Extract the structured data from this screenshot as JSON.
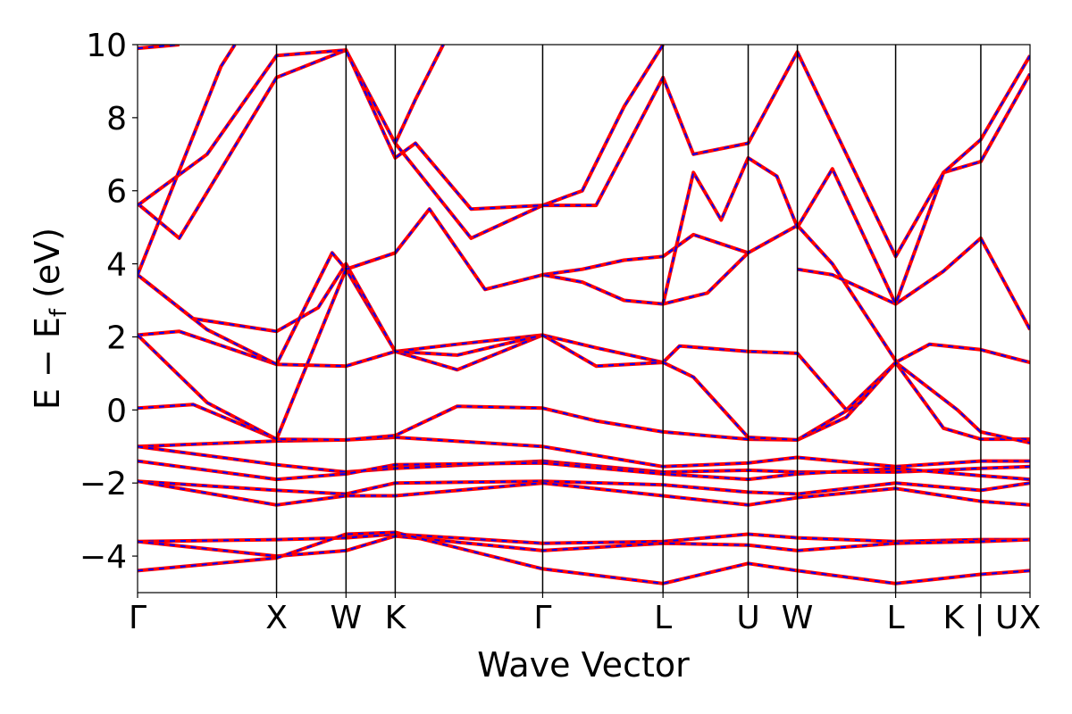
{
  "chart_data": {
    "type": "line",
    "title": "",
    "xlabel": "Wave Vector",
    "ylabel_main": "E − E",
    "ylabel_sub": "f",
    "ylabel_unit": " (eV)",
    "ylim": [
      -5,
      10
    ],
    "yticks": [
      {
        "value": 10,
        "label": "10"
      },
      {
        "value": 8,
        "label": "8"
      },
      {
        "value": 6,
        "label": "6"
      },
      {
        "value": 4,
        "label": "4"
      },
      {
        "value": 2,
        "label": "2"
      },
      {
        "value": 0,
        "label": "0"
      },
      {
        "value": -2,
        "label": "−2"
      },
      {
        "value": -4,
        "label": "−4"
      }
    ],
    "kpath": [
      {
        "label": "Γ",
        "x": 0.0
      },
      {
        "label": "X",
        "x": 1.0
      },
      {
        "label": "W",
        "x": 1.5
      },
      {
        "label": "K",
        "x": 1.854
      },
      {
        "label": "Γ",
        "x": 2.915
      },
      {
        "label": "L",
        "x": 3.781
      },
      {
        "label": "U",
        "x": 4.394
      },
      {
        "label": "W",
        "x": 4.748
      },
      {
        "label": "L",
        "x": 5.455
      },
      {
        "label": "K | U",
        "x": 6.068
      },
      {
        "label": "X",
        "x": 6.422
      }
    ],
    "xlim": [
      0,
      6.422
    ],
    "series_colors": {
      "dft": "#ff0000",
      "model": "#0000ff"
    },
    "series": [
      {
        "points": [
          [
            0,
            -1.0
          ],
          [
            1.0,
            -0.85
          ],
          [
            1.5,
            -0.82
          ],
          [
            1.854,
            -0.75
          ],
          [
            2.915,
            -1.0
          ],
          [
            3.781,
            -1.55
          ],
          [
            4.394,
            -1.45
          ],
          [
            4.748,
            -1.3
          ],
          [
            5.455,
            -1.55
          ],
          [
            6.068,
            -1.4
          ],
          [
            6.422,
            -1.4
          ]
        ]
      },
      {
        "points": [
          [
            0,
            -1.0
          ],
          [
            1.0,
            -1.5
          ],
          [
            1.5,
            -1.7
          ],
          [
            1.854,
            -1.6
          ],
          [
            2.915,
            -1.4
          ],
          [
            3.781,
            -1.7
          ],
          [
            4.394,
            -1.65
          ],
          [
            4.748,
            -1.7
          ],
          [
            5.455,
            -1.7
          ],
          [
            6.068,
            -1.6
          ],
          [
            6.422,
            -1.55
          ]
        ]
      },
      {
        "points": [
          [
            0,
            -1.4
          ],
          [
            1.0,
            -1.9
          ],
          [
            1.5,
            -1.75
          ],
          [
            1.854,
            -1.5
          ],
          [
            2.915,
            -1.45
          ],
          [
            3.781,
            -1.75
          ],
          [
            4.394,
            -1.9
          ],
          [
            4.748,
            -1.75
          ],
          [
            5.455,
            -1.6
          ],
          [
            6.068,
            -1.8
          ],
          [
            6.422,
            -1.9
          ]
        ]
      },
      {
        "points": [
          [
            0,
            -1.95
          ],
          [
            1.0,
            -2.2
          ],
          [
            1.5,
            -2.3
          ],
          [
            1.854,
            -2.0
          ],
          [
            2.915,
            -1.95
          ],
          [
            3.781,
            -2.05
          ],
          [
            4.394,
            -2.25
          ],
          [
            4.748,
            -2.3
          ],
          [
            5.455,
            -2.0
          ],
          [
            6.068,
            -2.2
          ],
          [
            6.422,
            -2.0
          ]
        ]
      },
      {
        "points": [
          [
            0,
            -1.95
          ],
          [
            1.0,
            -2.6
          ],
          [
            1.5,
            -2.35
          ],
          [
            1.854,
            -2.35
          ],
          [
            2.915,
            -2.0
          ],
          [
            3.781,
            -2.35
          ],
          [
            4.394,
            -2.6
          ],
          [
            4.748,
            -2.4
          ],
          [
            5.455,
            -2.15
          ],
          [
            6.068,
            -2.5
          ],
          [
            6.422,
            -2.6
          ]
        ]
      },
      {
        "points": [
          [
            0,
            -3.6
          ],
          [
            1.0,
            -3.55
          ],
          [
            1.5,
            -3.5
          ],
          [
            1.854,
            -3.4
          ],
          [
            2.915,
            -3.65
          ],
          [
            3.781,
            -3.6
          ],
          [
            4.394,
            -3.4
          ],
          [
            4.748,
            -3.5
          ],
          [
            5.455,
            -3.6
          ],
          [
            6.068,
            -3.55
          ],
          [
            6.422,
            -3.55
          ]
        ]
      },
      {
        "points": [
          [
            0,
            -3.6
          ],
          [
            1.0,
            -4.0
          ],
          [
            1.5,
            -3.85
          ],
          [
            1.854,
            -3.45
          ],
          [
            2.915,
            -3.85
          ],
          [
            3.781,
            -3.65
          ],
          [
            4.394,
            -3.7
          ],
          [
            4.748,
            -3.85
          ],
          [
            5.455,
            -3.65
          ],
          [
            6.068,
            -3.6
          ],
          [
            6.422,
            -3.55
          ]
        ]
      },
      {
        "points": [
          [
            0,
            -4.4
          ],
          [
            1.0,
            -4.05
          ],
          [
            1.5,
            -3.4
          ],
          [
            1.854,
            -3.35
          ],
          [
            2.915,
            -4.35
          ],
          [
            3.781,
            -4.75
          ],
          [
            4.394,
            -4.2
          ],
          [
            4.748,
            -4.4
          ],
          [
            5.455,
            -4.75
          ],
          [
            6.068,
            -4.5
          ],
          [
            6.422,
            -4.4
          ]
        ]
      },
      {
        "points": [
          [
            0,
            0.05
          ],
          [
            0.4,
            0.15
          ],
          [
            1.0,
            -0.8
          ],
          [
            1.5,
            -0.82
          ],
          [
            1.854,
            -0.7
          ],
          [
            2.3,
            0.1
          ],
          [
            2.915,
            0.05
          ],
          [
            3.3,
            -0.3
          ],
          [
            3.781,
            -0.6
          ],
          [
            4.394,
            -0.8
          ],
          [
            4.748,
            -0.82
          ],
          [
            5.1,
            -0.2
          ],
          [
            5.455,
            1.3
          ],
          [
            5.8,
            -0.5
          ],
          [
            6.068,
            -0.8
          ],
          [
            6.422,
            -0.8
          ]
        ]
      },
      {
        "points": [
          [
            0,
            2.05
          ],
          [
            0.3,
            2.15
          ],
          [
            1.0,
            1.25
          ],
          [
            1.5,
            1.2
          ],
          [
            1.854,
            1.6
          ],
          [
            2.3,
            1.8
          ],
          [
            2.915,
            2.05
          ],
          [
            3.3,
            1.7
          ],
          [
            3.781,
            1.3
          ],
          [
            3.9,
            1.75
          ],
          [
            4.394,
            1.6
          ],
          [
            4.748,
            1.55
          ],
          [
            5.1,
            0.0
          ],
          [
            5.455,
            1.3
          ],
          [
            5.7,
            1.8
          ],
          [
            6.068,
            1.65
          ],
          [
            6.422,
            1.3
          ]
        ]
      },
      {
        "points": [
          [
            0,
            2.05
          ],
          [
            0.5,
            0.2
          ],
          [
            1.0,
            -0.8
          ],
          [
            1.5,
            3.85
          ],
          [
            1.854,
            1.6
          ],
          [
            2.3,
            1.1
          ],
          [
            2.915,
            2.05
          ],
          [
            3.3,
            1.2
          ],
          [
            3.781,
            1.3
          ],
          [
            4.0,
            0.9
          ],
          [
            4.394,
            -0.75
          ],
          [
            4.748,
            -0.82
          ],
          [
            5.2,
            0.2
          ],
          [
            5.455,
            1.3
          ],
          [
            5.9,
            0.0
          ],
          [
            6.068,
            -0.6
          ],
          [
            6.422,
            -0.9
          ]
        ]
      },
      {
        "points": [
          [
            0,
            3.7
          ],
          [
            0.4,
            2.5
          ],
          [
            1.0,
            2.15
          ],
          [
            1.3,
            2.8
          ],
          [
            1.5,
            4.0
          ],
          [
            1.854,
            1.6
          ],
          [
            2.3,
            1.5
          ],
          [
            2.915,
            2.05
          ]
        ]
      },
      {
        "points": [
          [
            2.915,
            3.7
          ],
          [
            3.2,
            3.85
          ],
          [
            3.5,
            4.1
          ],
          [
            3.781,
            4.2
          ],
          [
            4.0,
            4.8
          ],
          [
            4.394,
            4.3
          ],
          [
            4.748,
            5.05
          ],
          [
            5.0,
            4.0
          ],
          [
            5.455,
            1.35
          ]
        ]
      },
      {
        "points": [
          [
            0,
            3.7
          ],
          [
            0.5,
            2.2
          ],
          [
            1.0,
            1.25
          ],
          [
            1.4,
            4.3
          ],
          [
            1.5,
            3.85
          ],
          [
            1.854,
            4.3
          ],
          [
            2.1,
            5.5
          ],
          [
            2.5,
            3.3
          ],
          [
            2.915,
            3.7
          ],
          [
            3.2,
            3.5
          ],
          [
            3.5,
            3.0
          ],
          [
            3.781,
            2.9
          ],
          [
            4.1,
            3.2
          ],
          [
            4.394,
            4.3
          ]
        ]
      },
      {
        "points": [
          [
            4.748,
            3.85
          ],
          [
            5.0,
            3.7
          ],
          [
            5.455,
            2.9
          ],
          [
            5.8,
            3.8
          ],
          [
            6.068,
            4.7
          ],
          [
            6.422,
            2.2
          ]
        ]
      },
      {
        "points": [
          [
            0,
            5.65
          ],
          [
            0.3,
            4.7
          ],
          [
            1.0,
            9.1
          ],
          [
            1.5,
            9.85
          ],
          [
            1.854,
            7.3
          ],
          [
            2.4,
            4.7
          ],
          [
            2.915,
            5.6
          ],
          [
            3.2,
            6.0
          ],
          [
            3.5,
            8.3
          ],
          [
            3.781,
            10.0
          ]
        ]
      },
      {
        "points": [
          [
            0,
            5.6
          ],
          [
            0.5,
            7.0
          ],
          [
            1.0,
            9.7
          ],
          [
            1.5,
            9.85
          ],
          [
            1.854,
            6.9
          ],
          [
            2.0,
            7.3
          ],
          [
            2.4,
            5.5
          ],
          [
            2.915,
            5.6
          ],
          [
            3.3,
            5.6
          ],
          [
            3.781,
            9.1
          ],
          [
            4.0,
            7.0
          ],
          [
            4.394,
            7.3
          ],
          [
            4.748,
            9.8
          ],
          [
            5.1,
            7.0
          ],
          [
            5.455,
            4.2
          ],
          [
            5.8,
            6.5
          ],
          [
            6.068,
            6.8
          ],
          [
            6.422,
            9.2
          ]
        ]
      },
      {
        "points": [
          [
            0,
            9.9
          ],
          [
            0.3,
            10.0
          ]
        ]
      },
      {
        "points": [
          [
            0,
            3.7
          ],
          [
            0.6,
            9.4
          ],
          [
            0.7,
            10.0
          ]
        ]
      },
      {
        "points": [
          [
            1.854,
            7.3
          ],
          [
            2.0,
            8.5
          ],
          [
            2.2,
            10.0
          ]
        ]
      },
      {
        "points": [
          [
            3.781,
            2.9
          ],
          [
            4.0,
            6.5
          ],
          [
            4.2,
            5.2
          ],
          [
            4.394,
            6.9
          ],
          [
            4.6,
            6.4
          ],
          [
            4.748,
            5.0
          ],
          [
            5.0,
            6.6
          ],
          [
            5.455,
            2.9
          ],
          [
            5.8,
            6.5
          ],
          [
            6.068,
            7.4
          ],
          [
            6.422,
            9.7
          ]
        ]
      }
    ]
  }
}
